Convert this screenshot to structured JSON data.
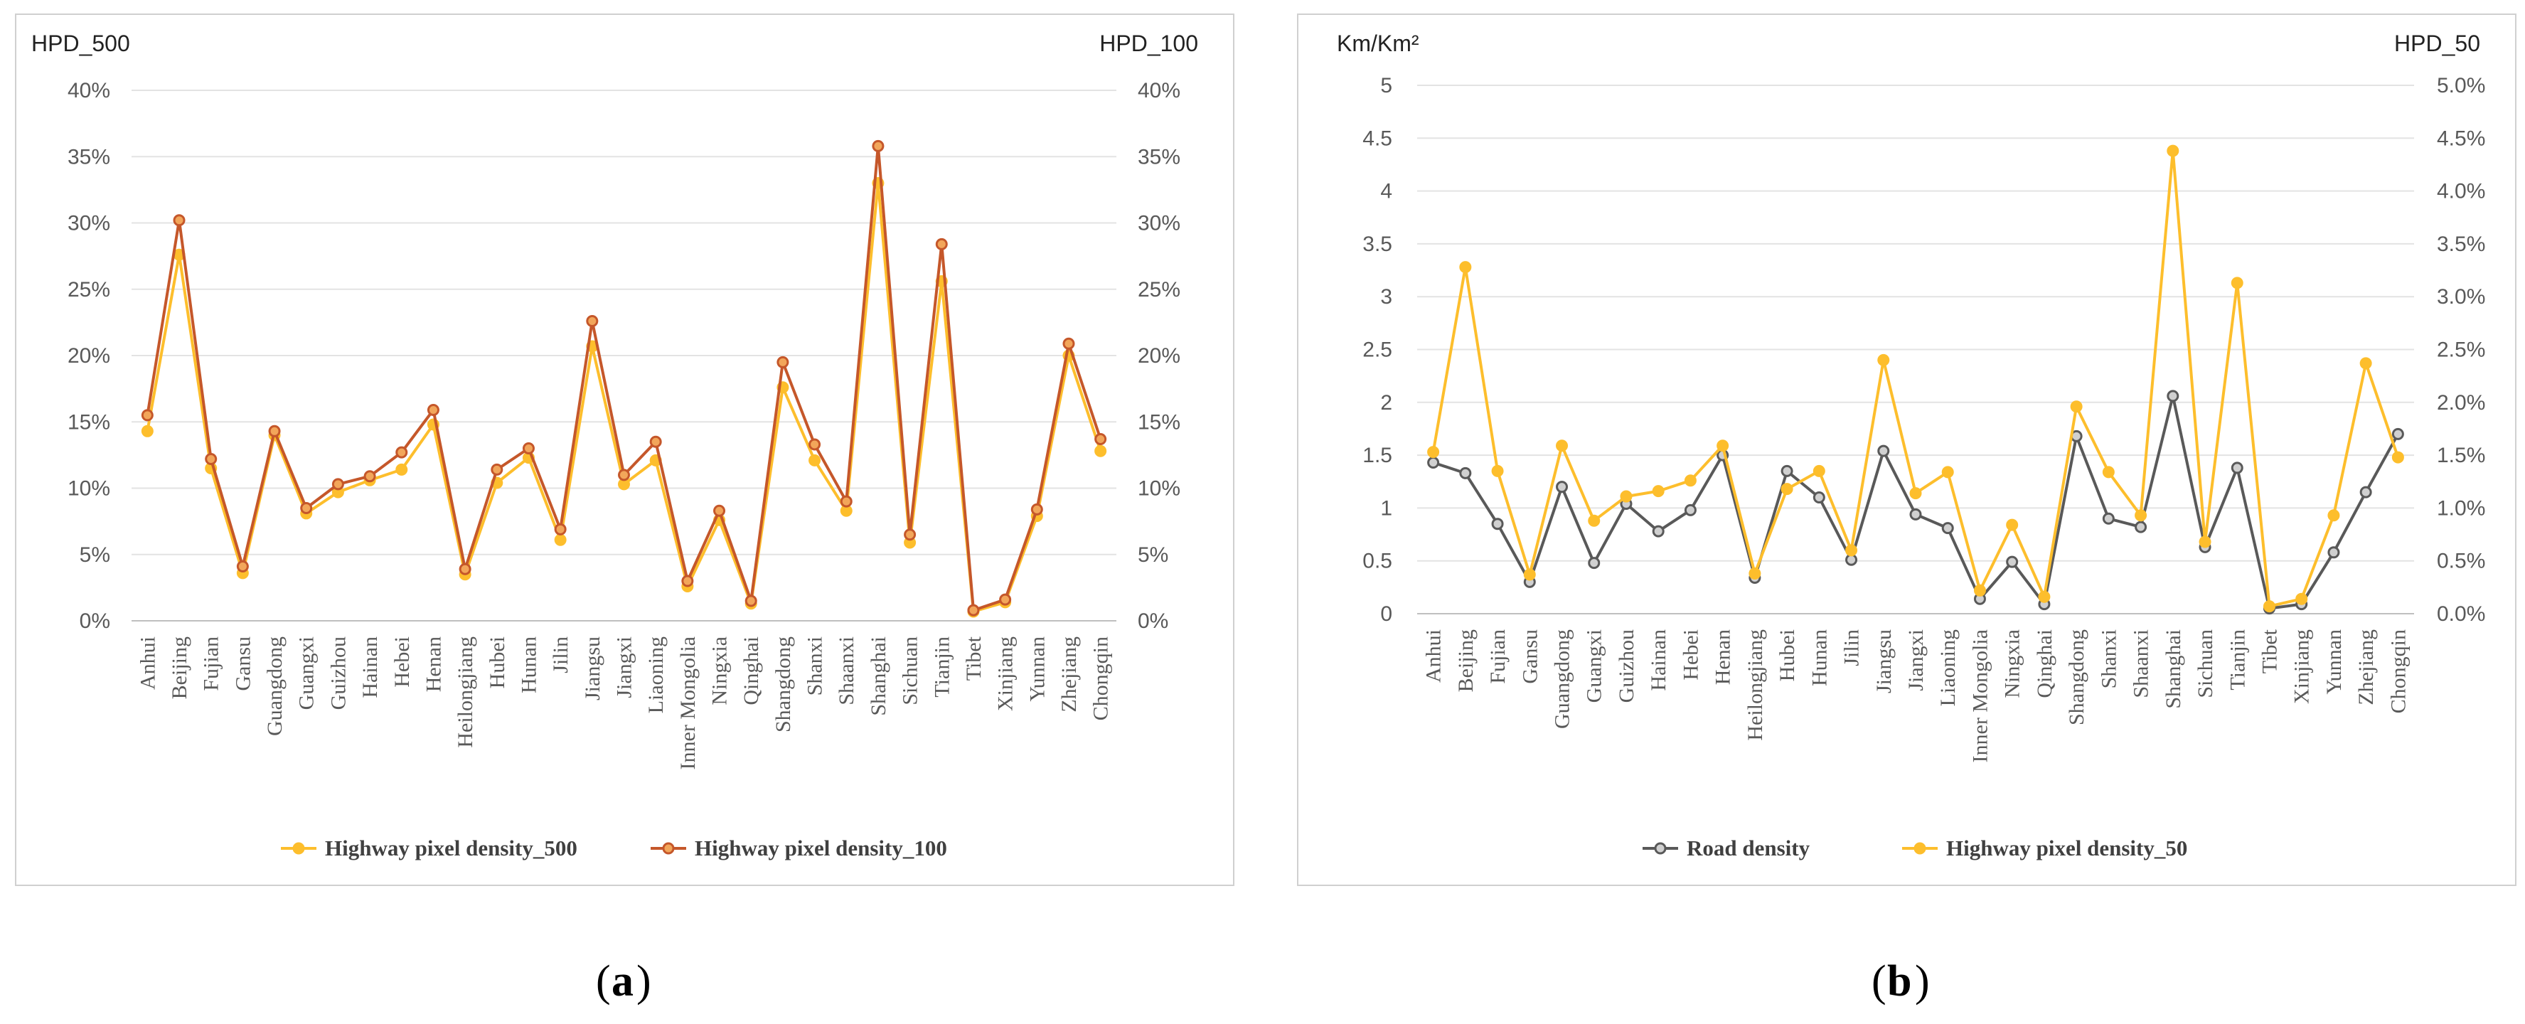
{
  "figure": {
    "label_a": "a",
    "label_b": "b"
  },
  "chart_data": [
    {
      "type": "line",
      "panel": "a",
      "y_left_label": "HPD_500",
      "y_right_label": "HPD_100",
      "categories": [
        "Anhui",
        "Beijing",
        "Fujian",
        "Gansu",
        "Guangdong",
        "Guangxi",
        "Guizhou",
        "Hainan",
        "Hebei",
        "Henan",
        "Heilongjiang",
        "Hubei",
        "Hunan",
        "Jilin",
        "Jiangsu",
        "Jiangxi",
        "Liaoning",
        "Inner Mongolia",
        "Ningxia",
        "Qinghai",
        "Shangdong",
        "Shanxi",
        "Shaanxi",
        "Shanghai",
        "Sichuan",
        "Tianjin",
        "Tibet",
        "Xinjiang",
        "Yunnan",
        "Zhejiang",
        "Chongqin"
      ],
      "left_ticks": [
        "0%",
        "5%",
        "10%",
        "15%",
        "20%",
        "25%",
        "30%",
        "35%",
        "40%"
      ],
      "right_ticks": [
        "0%",
        "5%",
        "10%",
        "15%",
        "20%",
        "25%",
        "30%",
        "35%",
        "40%"
      ],
      "ylim_left": [
        0,
        40
      ],
      "ylim_right": [
        0,
        40
      ],
      "grid": true,
      "legend_position": "bottom",
      "series": [
        {
          "name": "Highway pixel density_500",
          "axis": "left",
          "color": "#FDBE2C",
          "marker_fill": "#FDBE2C",
          "values": [
            14.3,
            27.6,
            11.5,
            3.6,
            14.0,
            8.1,
            9.7,
            10.6,
            11.4,
            14.8,
            3.5,
            10.4,
            12.3,
            6.1,
            20.7,
            10.3,
            12.1,
            2.6,
            7.6,
            1.3,
            17.6,
            12.1,
            8.3,
            33.0,
            5.9,
            25.6,
            0.7,
            1.4,
            7.9,
            20.0,
            12.8
          ]
        },
        {
          "name": "Highway pixel density_100",
          "axis": "right",
          "color": "#C5572A",
          "marker_fill": "#F2A65A",
          "values": [
            15.5,
            30.2,
            12.2,
            4.1,
            14.3,
            8.5,
            10.3,
            10.9,
            12.7,
            15.9,
            3.9,
            11.4,
            13.0,
            6.9,
            22.6,
            11.0,
            13.5,
            3.0,
            8.3,
            1.5,
            19.5,
            13.3,
            9.0,
            35.8,
            6.5,
            28.4,
            0.8,
            1.6,
            8.4,
            20.9,
            13.7
          ]
        }
      ]
    },
    {
      "type": "line",
      "panel": "b",
      "y_left_label": "Km/Km²",
      "y_right_label": "HPD_50",
      "categories": [
        "Anhui",
        "Beijing",
        "Fujian",
        "Gansu",
        "Guangdong",
        "Guangxi",
        "Guizhou",
        "Hainan",
        "Hebei",
        "Henan",
        "Heilongjiang",
        "Hubei",
        "Hunan",
        "Jilin",
        "Jiangsu",
        "Jiangxi",
        "Liaoning",
        "Inner Mongolia",
        "Ningxia",
        "Qinghai",
        "Shangdong",
        "Shanxi",
        "Shaanxi",
        "Shanghai",
        "Sichuan",
        "Tianjin",
        "Tibet",
        "Xinjiang",
        "Yunnan",
        "Zhejiang",
        "Chongqin"
      ],
      "left_ticks": [
        "0",
        "0.5",
        "1",
        "1.5",
        "2",
        "2.5",
        "3",
        "3.5",
        "4",
        "4.5",
        "5"
      ],
      "right_ticks": [
        "0.0%",
        "0.5%",
        "1.0%",
        "1.5%",
        "2.0%",
        "2.5%",
        "3.0%",
        "3.5%",
        "4.0%",
        "4.5%",
        "5.0%"
      ],
      "ylim_left": [
        0,
        5
      ],
      "ylim_right": [
        0,
        5
      ],
      "grid": true,
      "legend_position": "bottom",
      "series": [
        {
          "name": "Road density",
          "axis": "left",
          "color": "#595959",
          "marker_fill": "#D0D0D0",
          "values": [
            1.43,
            1.33,
            0.85,
            0.3,
            1.2,
            0.48,
            1.04,
            0.78,
            0.98,
            1.5,
            0.34,
            1.35,
            1.1,
            0.51,
            1.54,
            0.94,
            0.81,
            0.14,
            0.49,
            0.09,
            1.68,
            0.9,
            0.82,
            2.06,
            0.63,
            1.38,
            0.05,
            0.09,
            0.58,
            1.15,
            1.7
          ]
        },
        {
          "name": "Highway pixel density_50",
          "axis": "right",
          "color": "#FDBE2C",
          "marker_fill": "#FDBE2C",
          "values": [
            1.53,
            3.28,
            1.35,
            0.37,
            1.59,
            0.88,
            1.11,
            1.16,
            1.26,
            1.59,
            0.38,
            1.18,
            1.35,
            0.6,
            2.4,
            1.14,
            1.34,
            0.22,
            0.84,
            0.16,
            1.96,
            1.34,
            0.93,
            4.38,
            0.68,
            3.13,
            0.07,
            0.14,
            0.93,
            2.37,
            1.48
          ]
        }
      ]
    }
  ]
}
